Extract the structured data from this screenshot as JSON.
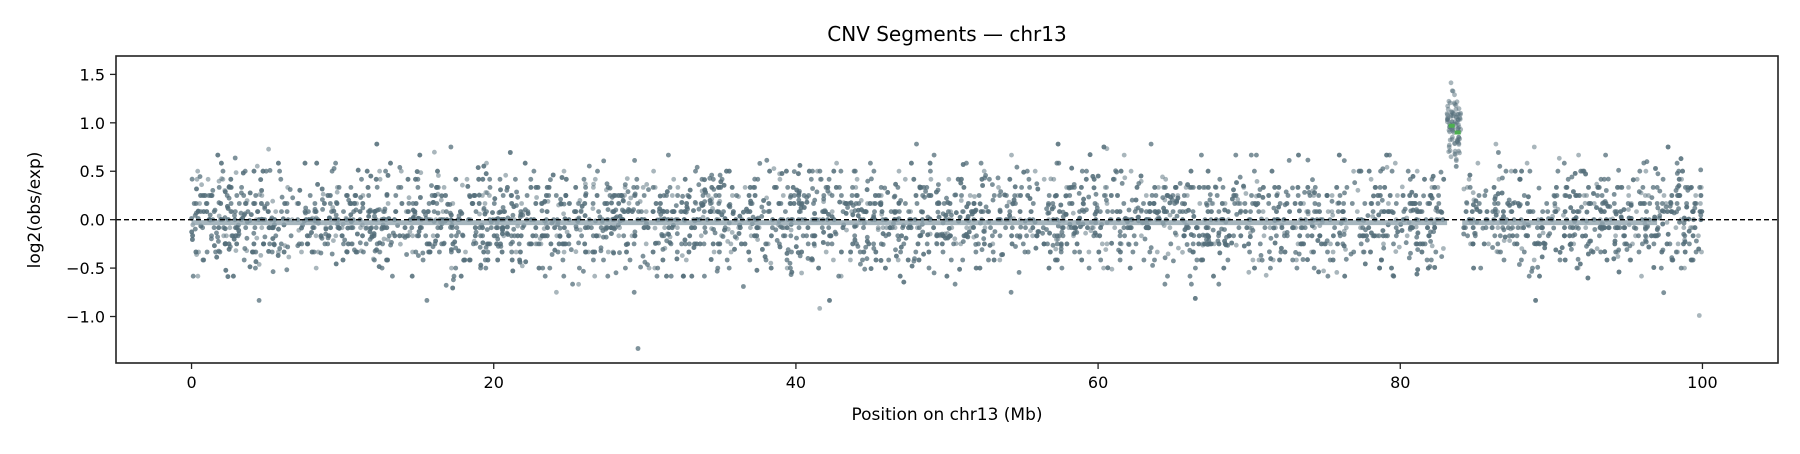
{
  "chart_data": {
    "type": "scatter",
    "title": "CNV Segments — chr13",
    "xlabel": "Position on chr13 (Mb)",
    "ylabel": "log2(obs/exp)",
    "xlim": [
      -5,
      105
    ],
    "ylim": [
      -1.48,
      1.69
    ],
    "xticks": [
      0,
      20,
      40,
      60,
      80,
      100
    ],
    "xtick_labels": [
      "0",
      "20",
      "40",
      "60",
      "80",
      "100"
    ],
    "yticks": [
      -1.0,
      -0.5,
      0.0,
      0.5,
      1.0,
      1.5
    ],
    "ytick_labels": [
      "−1.0",
      "−0.5",
      "0.0",
      "0.5",
      "1.0",
      "1.5"
    ],
    "grid": false,
    "reference_line": {
      "y": 0.0,
      "style": "dashed",
      "color": "#000000"
    },
    "points": {
      "color": "#546e7a",
      "count": 7000,
      "x_range": [
        0,
        100
      ],
      "baseline": {
        "mean": 0.0,
        "sd": 0.27,
        "min": -1.33,
        "max": 0.78
      },
      "gain_region": {
        "x_range": [
          83.1,
          84.0
        ],
        "mean": 1.0,
        "sd": 0.2,
        "count": 90
      }
    },
    "segments": [
      {
        "x0": 0,
        "x1": 83.1,
        "y": -0.03,
        "color": "#90a4ae",
        "state": "neutral"
      },
      {
        "x0": 83.2,
        "x1": 83.6,
        "y": 0.97,
        "color": "#4caf50",
        "state": "gain"
      },
      {
        "x0": 83.6,
        "x1": 84.0,
        "y": 0.9,
        "color": "#4caf50",
        "state": "gain"
      },
      {
        "x0": 84.1,
        "x1": 97.0,
        "y": -0.03,
        "color": "#90a4ae",
        "state": "neutral"
      }
    ]
  }
}
